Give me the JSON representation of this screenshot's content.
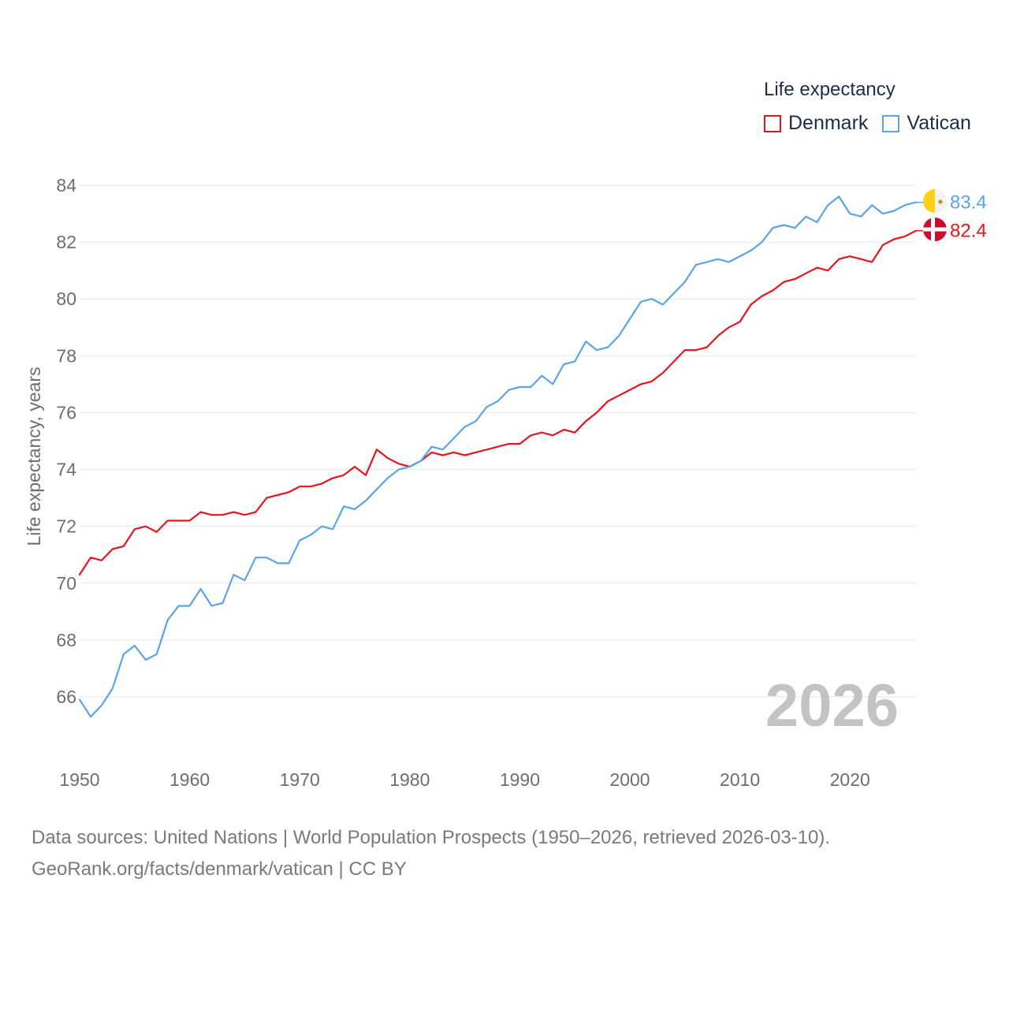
{
  "legend": {
    "title": "Life expectancy",
    "items": [
      {
        "name": "Denmark",
        "color": "#e8141c"
      },
      {
        "name": "Vatican",
        "color": "#5ba4e5"
      }
    ]
  },
  "footer": {
    "line1": "Data sources: United Nations | World Population Prospects (1950–2026, retrieved 2026-03-10).",
    "line2": "GeoRank.org/facts/denmark/vatican | CC BY"
  },
  "chart_data": {
    "type": "line",
    "title": "Life expectancy",
    "xlabel": "",
    "ylabel": "Life expectancy, years",
    "xlim": [
      1950,
      2026
    ],
    "ylim": [
      64.5,
      85
    ],
    "x_ticks": [
      1950,
      1960,
      1970,
      1980,
      1990,
      2000,
      2010,
      2020
    ],
    "y_ticks": [
      66,
      68,
      70,
      72,
      74,
      76,
      78,
      80,
      82,
      84
    ],
    "year_label": "2026",
    "x_start": 1950,
    "series": [
      {
        "name": "Denmark",
        "color": "#e8141c",
        "end_label": "82.4",
        "values": [
          70.3,
          70.9,
          70.8,
          71.2,
          71.3,
          71.9,
          72.0,
          71.8,
          72.2,
          72.2,
          72.2,
          72.5,
          72.4,
          72.4,
          72.5,
          72.4,
          72.5,
          73.0,
          73.1,
          73.2,
          73.4,
          73.4,
          73.5,
          73.7,
          73.8,
          74.1,
          73.8,
          74.7,
          74.4,
          74.2,
          74.1,
          74.3,
          74.6,
          74.5,
          74.6,
          74.5,
          74.6,
          74.7,
          74.8,
          74.9,
          74.9,
          75.2,
          75.3,
          75.2,
          75.4,
          75.3,
          75.7,
          76.0,
          76.4,
          76.6,
          76.8,
          77.0,
          77.1,
          77.4,
          77.8,
          78.2,
          78.2,
          78.3,
          78.7,
          79.0,
          79.2,
          79.8,
          80.1,
          80.3,
          80.6,
          80.7,
          80.9,
          81.1,
          81.0,
          81.4,
          81.5,
          81.4,
          81.3,
          81.9,
          82.1,
          82.2,
          82.4
        ]
      },
      {
        "name": "Vatican",
        "color": "#5ba4e5",
        "end_label": "83.4",
        "values": [
          65.9,
          65.3,
          65.7,
          66.3,
          67.5,
          67.8,
          67.3,
          67.5,
          68.7,
          69.2,
          69.2,
          69.8,
          69.2,
          69.3,
          70.3,
          70.1,
          70.9,
          70.9,
          70.7,
          70.7,
          71.5,
          71.7,
          72.0,
          71.9,
          72.7,
          72.6,
          72.9,
          73.3,
          73.7,
          74.0,
          74.1,
          74.3,
          74.8,
          74.7,
          75.1,
          75.5,
          75.7,
          76.2,
          76.4,
          76.8,
          76.9,
          76.9,
          77.3,
          77.0,
          77.7,
          77.8,
          78.5,
          78.2,
          78.3,
          78.7,
          79.3,
          79.9,
          80.0,
          79.8,
          80.2,
          80.6,
          81.2,
          81.3,
          81.4,
          81.3,
          81.5,
          81.7,
          82.0,
          82.5,
          82.6,
          82.5,
          82.9,
          82.7,
          83.3,
          83.6,
          83.0,
          82.9,
          83.3,
          83.0,
          83.1,
          83.3,
          83.4
        ]
      }
    ]
  }
}
